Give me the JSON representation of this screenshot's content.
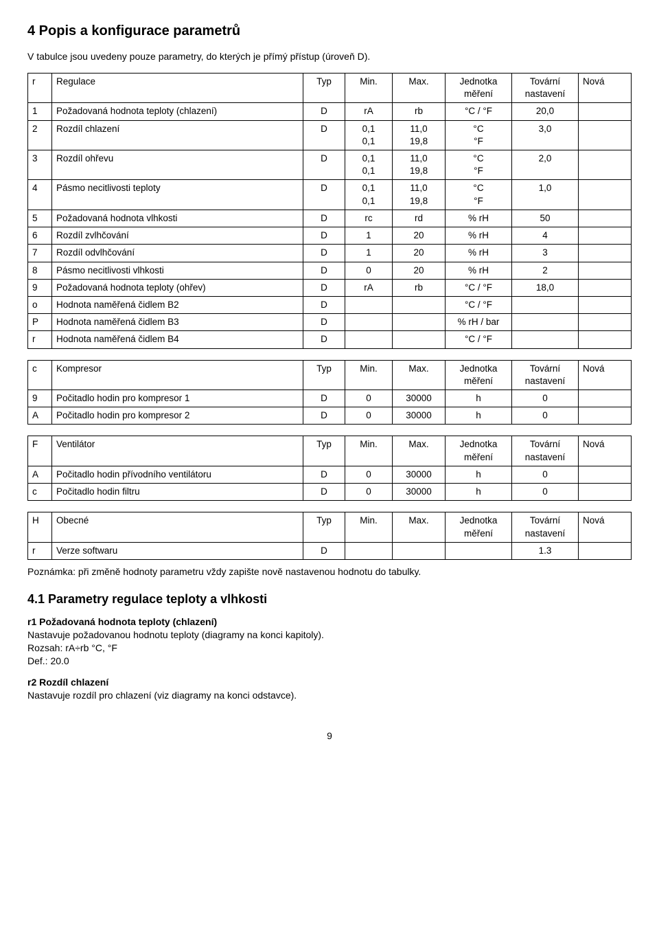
{
  "section_title": "4  Popis a konfigurace parametrů",
  "intro": "V tabulce jsou uvedeny pouze parametry, do kterých je přímý přístup (úroveň D).",
  "headers": {
    "typ": "Typ",
    "min": "Min.",
    "max": "Max.",
    "unit": "Jednotka měření",
    "fact": "Tovární nastavení",
    "nova": "Nová"
  },
  "table_r": {
    "idx": "r",
    "title": "Regulace",
    "rows": [
      {
        "idx": "1",
        "name": "Požadovaná hodnota teploty (chlazení)",
        "typ": "D",
        "min": "rA",
        "max": "rb",
        "unit": "°C / °F",
        "fact": "20,0"
      },
      {
        "idx": "2",
        "name": "Rozdíl chlazení",
        "typ": "D",
        "min": "0,1\n0,1",
        "max": "11,0\n19,8",
        "unit": "°C\n°F",
        "fact": "3,0"
      },
      {
        "idx": "3",
        "name": "Rozdíl ohřevu",
        "typ": "D",
        "min": "0,1\n0,1",
        "max": "11,0\n19,8",
        "unit": "°C\n°F",
        "fact": "2,0"
      },
      {
        "idx": "4",
        "name": "Pásmo necitlivosti teploty",
        "typ": "D",
        "min": "0,1\n0,1",
        "max": "11,0\n19,8",
        "unit": "°C\n°F",
        "fact": "1,0"
      },
      {
        "idx": "5",
        "name": "Požadovaná hodnota vlhkosti",
        "typ": "D",
        "min": "rc",
        "max": "rd",
        "unit": "% rH",
        "fact": "50"
      },
      {
        "idx": "6",
        "name": "Rozdíl zvlhčování",
        "typ": "D",
        "min": "1",
        "max": "20",
        "unit": "% rH",
        "fact": "4"
      },
      {
        "idx": "7",
        "name": "Rozdíl odvlhčování",
        "typ": "D",
        "min": "1",
        "max": "20",
        "unit": "% rH",
        "fact": "3"
      },
      {
        "idx": "8",
        "name": "Pásmo necitlivosti vlhkosti",
        "typ": "D",
        "min": "0",
        "max": "20",
        "unit": "% rH",
        "fact": "2"
      },
      {
        "idx": "9",
        "name": "Požadovaná hodnota teploty (ohřev)",
        "typ": "D",
        "min": "rA",
        "max": "rb",
        "unit": "°C / °F",
        "fact": "18,0"
      },
      {
        "idx": "o",
        "name": "Hodnota naměřená čidlem B2",
        "typ": "D",
        "min": "",
        "max": "",
        "unit": "°C / °F",
        "fact": ""
      },
      {
        "idx": "P",
        "name": "Hodnota naměřená čidlem B3",
        "typ": "D",
        "min": "",
        "max": "",
        "unit": "% rH / bar",
        "fact": ""
      },
      {
        "idx": "r",
        "name": "Hodnota naměřená čidlem B4",
        "typ": "D",
        "min": "",
        "max": "",
        "unit": "°C / °F",
        "fact": ""
      }
    ]
  },
  "table_c": {
    "idx": "c",
    "title": "Kompresor",
    "rows": [
      {
        "idx": "9",
        "name": "Počitadlo hodin pro kompresor 1",
        "typ": "D",
        "min": "0",
        "max": "30000",
        "unit": "h",
        "fact": "0"
      },
      {
        "idx": "A",
        "name": "Počitadlo hodin pro kompresor 2",
        "typ": "D",
        "min": "0",
        "max": "30000",
        "unit": "h",
        "fact": "0"
      }
    ]
  },
  "table_f": {
    "idx": "F",
    "title": "Ventilátor",
    "rows": [
      {
        "idx": "A",
        "name": "Počitadlo hodin přívodního ventilátoru",
        "typ": "D",
        "min": "0",
        "max": "30000",
        "unit": "h",
        "fact": "0"
      },
      {
        "idx": "c",
        "name": "Počitadlo hodin filtru",
        "typ": "D",
        "min": "0",
        "max": "30000",
        "unit": "h",
        "fact": "0"
      }
    ]
  },
  "table_h": {
    "idx": "H",
    "title": "Obecné",
    "rows": [
      {
        "idx": "r",
        "name": "Verze softwaru",
        "typ": "D",
        "min": "",
        "max": "",
        "unit": "",
        "fact": "1.3"
      }
    ]
  },
  "note": "Poznámka: při změně hodnoty parametru vždy zapište nově nastavenou hodnotu do tabulky.",
  "subsection_title": "4.1  Parametry regulace teploty a vlhkosti",
  "param_r1": {
    "title": "r1 Požadovaná hodnota teploty (chlazení)",
    "l1": "Nastavuje požadovanou hodnotu teploty (diagramy na konci kapitoly).",
    "l2": "Rozsah: rA÷rb °C, °F",
    "l3": "Def.: 20.0"
  },
  "param_r2": {
    "title": "r2 Rozdíl chlazení",
    "l1": "Nastavuje rozdíl pro chlazení (viz diagramy na konci odstavce)."
  },
  "page_number": "9"
}
